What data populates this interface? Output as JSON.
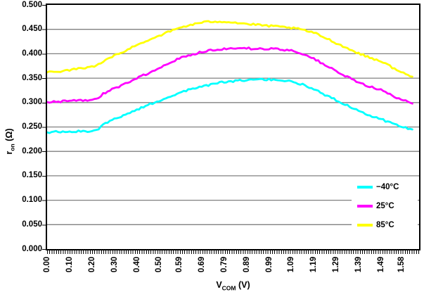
{
  "colors": {
    "background": "#FFFFFF",
    "axis": "#000000",
    "grid": "#808080",
    "series_neg40": "#00FFFF",
    "series_25": "#FF00FF",
    "series_85": "#FFFF00"
  },
  "chart_data": {
    "type": "line",
    "title": "",
    "xlabel": {
      "pre": "V",
      "sub": "COM",
      "post": " (V)"
    },
    "ylabel": {
      "pre": "r",
      "sub": "on",
      "post": " (Ω)"
    },
    "x_range": [
      0,
      1.66
    ],
    "y_range": [
      0,
      0.5
    ],
    "grid": true,
    "legend_position": "inside-right",
    "y_tick_labels": [
      "0.500",
      "0.450",
      "0.400",
      "0.350",
      "0.300",
      "0.250",
      "0.200",
      "0.150",
      "0.100",
      "0.050",
      "0.000"
    ],
    "x_tick_labels": [
      "0.00",
      "0.10",
      "0.20",
      "0.30",
      "0.40",
      "0.50",
      "0.59",
      "0.69",
      "0.79",
      "0.89",
      "0.99",
      "1.09",
      "1.19",
      "1.29",
      "1.39",
      "1.49",
      "1.58"
    ],
    "x_tick_values": [
      0.0,
      0.1,
      0.2,
      0.3,
      0.4,
      0.5,
      0.59,
      0.69,
      0.79,
      0.89,
      0.99,
      1.09,
      1.19,
      1.29,
      1.39,
      1.49,
      1.58
    ],
    "x": [
      0.0,
      0.05,
      0.1,
      0.15,
      0.2,
      0.22,
      0.25,
      0.3,
      0.35,
      0.4,
      0.45,
      0.5,
      0.55,
      0.59,
      0.64,
      0.69,
      0.74,
      0.79,
      0.84,
      0.89,
      0.94,
      0.99,
      1.04,
      1.09,
      1.14,
      1.19,
      1.24,
      1.29,
      1.34,
      1.39,
      1.44,
      1.49,
      1.54,
      1.58,
      1.63
    ],
    "series": [
      {
        "name": "−40°C",
        "color": "#00FFFF",
        "values": [
          0.239,
          0.24,
          0.24,
          0.241,
          0.242,
          0.243,
          0.255,
          0.266,
          0.276,
          0.285,
          0.295,
          0.304,
          0.313,
          0.32,
          0.327,
          0.333,
          0.338,
          0.342,
          0.344,
          0.346,
          0.347,
          0.347,
          0.346,
          0.343,
          0.337,
          0.328,
          0.316,
          0.305,
          0.294,
          0.284,
          0.274,
          0.266,
          0.257,
          0.251,
          0.245
        ]
      },
      {
        "name": "25°C",
        "color": "#FF00FF",
        "values": [
          0.301,
          0.302,
          0.303,
          0.304,
          0.306,
          0.307,
          0.318,
          0.329,
          0.339,
          0.35,
          0.36,
          0.371,
          0.382,
          0.391,
          0.398,
          0.404,
          0.408,
          0.41,
          0.411,
          0.411,
          0.41,
          0.41,
          0.409,
          0.407,
          0.4,
          0.39,
          0.377,
          0.364,
          0.352,
          0.341,
          0.333,
          0.326,
          0.314,
          0.306,
          0.298
        ]
      },
      {
        "name": "85°C",
        "color": "#FFFF00",
        "values": [
          0.362,
          0.364,
          0.367,
          0.37,
          0.374,
          0.375,
          0.384,
          0.396,
          0.406,
          0.418,
          0.428,
          0.437,
          0.446,
          0.453,
          0.459,
          0.464,
          0.466,
          0.466,
          0.464,
          0.461,
          0.459,
          0.457,
          0.455,
          0.453,
          0.449,
          0.443,
          0.433,
          0.422,
          0.411,
          0.401,
          0.392,
          0.385,
          0.372,
          0.362,
          0.353
        ]
      }
    ]
  }
}
